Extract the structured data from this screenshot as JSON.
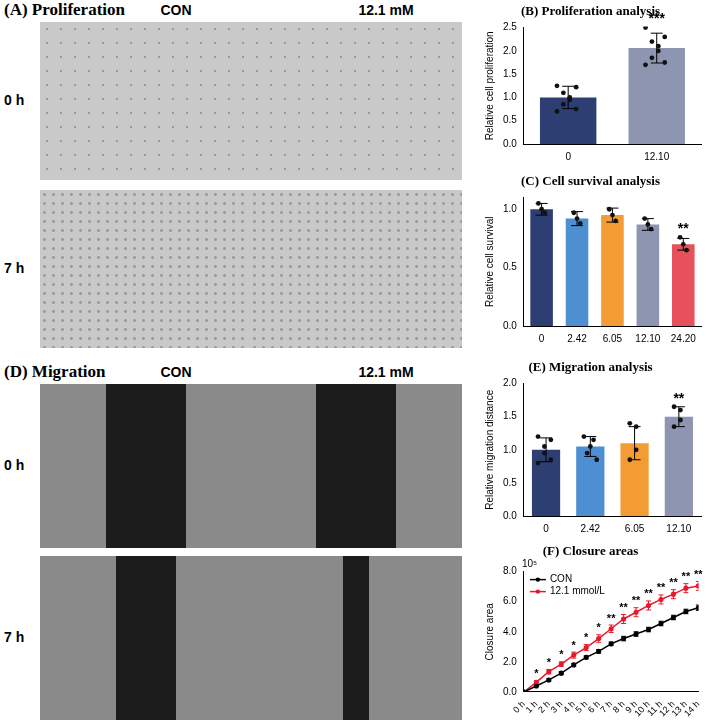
{
  "image_panels": [
    {
      "title": "(A) Proliferation",
      "columns": [
        "CON",
        "12.1 mM"
      ],
      "rows": [
        "0 h",
        "7 h"
      ]
    },
    {
      "title": "(D) Migration",
      "columns": [
        "CON",
        "12.1 mM"
      ],
      "rows": [
        "0 h",
        "7 h"
      ]
    }
  ],
  "chart_data": [
    {
      "type": "bar",
      "title": "(B) Proliferation analysis",
      "y_label": "Relative cell proliferation",
      "categories": [
        "0",
        "12.10"
      ],
      "values": [
        1.0,
        2.06
      ],
      "errors": [
        0.24,
        0.32
      ],
      "points": [
        [
          1.25,
          1.22,
          1.1,
          1.0,
          0.95,
          0.85,
          0.75,
          0.7
        ],
        [
          2.5,
          2.3,
          2.2,
          2.1,
          2.0,
          1.85,
          1.75,
          1.7
        ]
      ],
      "significance": [
        null,
        "***"
      ],
      "colors": [
        "#2d3e72",
        "#8e95b0"
      ],
      "ylim": [
        0,
        2.5
      ],
      "yticks": [
        {
          "value": 0,
          "label": "0.0"
        },
        0.5,
        {
          "value": 1,
          "label": "1.0"
        },
        1.5,
        {
          "value": 2,
          "label": "2.0"
        },
        2.5
      ],
      "grid": false
    },
    {
      "type": "bar",
      "title": "(C) Cell survival analysis",
      "y_label": "Relative cell survival",
      "categories": [
        "0",
        "2.42",
        "6.05",
        "12.10",
        "24.20"
      ],
      "values": [
        1.0,
        0.92,
        0.95,
        0.87,
        0.7
      ],
      "errors": [
        0.05,
        0.06,
        0.06,
        0.05,
        0.05
      ],
      "points": [
        [
          1.05,
          1.0,
          0.97
        ],
        [
          0.97,
          0.92,
          0.88
        ],
        [
          1.0,
          0.95,
          0.9
        ],
        [
          0.92,
          0.87,
          0.83
        ],
        [
          0.76,
          0.7,
          0.65
        ]
      ],
      "significance": [
        null,
        null,
        null,
        null,
        "**"
      ],
      "colors": [
        "#2d3e72",
        "#4d8fd1",
        "#f39c33",
        "#8e95b0",
        "#e8505b"
      ],
      "ylim": [
        0,
        1.1
      ],
      "yticks": [
        {
          "value": 0,
          "label": "0.0"
        },
        0.5,
        {
          "value": 1,
          "label": "1.0"
        }
      ],
      "grid": false
    },
    {
      "type": "bar",
      "title": "(E) Migration analysis",
      "y_label": "Relative migration distance",
      "categories": [
        "0",
        "2.42",
        "6.05",
        "12.10"
      ],
      "values": [
        1.0,
        1.05,
        1.1,
        1.5
      ],
      "errors": [
        0.18,
        0.15,
        0.25,
        0.15
      ],
      "points": [
        [
          1.2,
          1.15,
          1.05,
          0.95,
          0.85,
          0.8
        ],
        [
          1.2,
          1.15,
          1.05,
          0.95,
          0.85
        ],
        [
          1.4,
          1.35,
          1.0,
          0.85
        ],
        [
          1.65,
          1.6,
          1.45,
          1.35
        ]
      ],
      "significance": [
        null,
        null,
        null,
        "**"
      ],
      "colors": [
        "#2d3e72",
        "#4d8fd1",
        "#f39c33",
        "#8e95b0"
      ],
      "ylim": [
        0,
        2.0
      ],
      "yticks": [
        {
          "value": 0,
          "label": "0.0"
        },
        0.5,
        {
          "value": 1,
          "label": "1.0"
        },
        1.5,
        {
          "value": 2,
          "label": "2.0"
        }
      ],
      "grid": false
    },
    {
      "type": "line",
      "title": "(F) Closure areas",
      "y_label": "Closure area",
      "y_scale_text": "10⁵",
      "categories": [
        "0 h",
        "1 h",
        "2 h",
        "3 h",
        "4 h",
        "5 h",
        "6 h",
        "7 h",
        "8 h",
        "9 h",
        "10 h",
        "11 h",
        "12 h",
        "13 h",
        "14 h"
      ],
      "series": [
        {
          "name": "CON",
          "color": "#000000",
          "marker": "circle",
          "line_style": "solid",
          "values": [
            0,
            0.4,
            0.8,
            1.25,
            1.8,
            2.3,
            2.7,
            3.2,
            3.55,
            3.85,
            4.15,
            4.55,
            4.95,
            5.35,
            5.6
          ],
          "errors": [
            0,
            0.05,
            0.08,
            0.1,
            0.1,
            0.1,
            0.12,
            0.12,
            0.15,
            0.15,
            0.15,
            0.15,
            0.15,
            0.15,
            0.18
          ]
        },
        {
          "name": "12.1 mmol/L",
          "color": "#e8192c",
          "marker": "circle",
          "line_style": "solid",
          "values": [
            0,
            0.65,
            1.35,
            1.85,
            2.45,
            2.95,
            3.55,
            4.2,
            4.85,
            5.3,
            5.75,
            6.15,
            6.5,
            6.9,
            7.05
          ],
          "errors": [
            0,
            0.1,
            0.15,
            0.15,
            0.2,
            0.2,
            0.25,
            0.25,
            0.3,
            0.3,
            0.3,
            0.3,
            0.3,
            0.3,
            0.3
          ]
        }
      ],
      "significance": [
        null,
        "*",
        "*",
        "*",
        "*",
        "*",
        "*",
        "**",
        "**",
        "**",
        "**",
        "**",
        "**",
        "**",
        "**"
      ],
      "ylim": [
        0,
        8
      ],
      "yticks": [
        {
          "value": 0,
          "label": "0.0"
        },
        {
          "value": 2,
          "label": "2.0"
        },
        {
          "value": 4,
          "label": "4.0"
        },
        {
          "value": 6,
          "label": "6.0"
        },
        {
          "value": 8,
          "label": "8.0"
        }
      ],
      "legend": "upper left",
      "grid": false
    }
  ]
}
